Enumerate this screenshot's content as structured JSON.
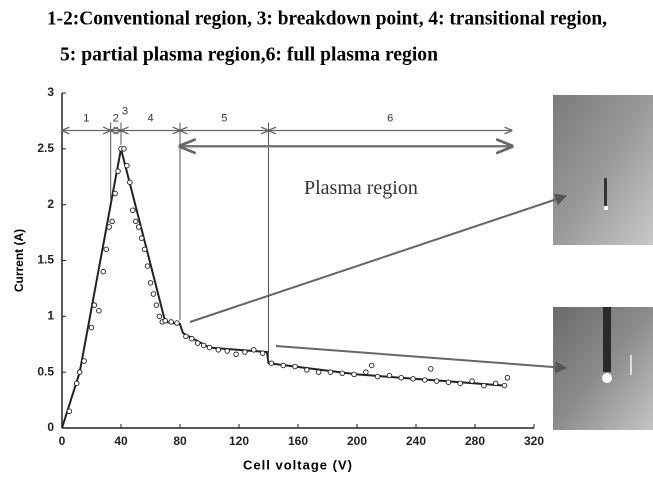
{
  "chart_data": {
    "type": "scatter",
    "title": [
      "1-2:Conventional region, 3: breakdown point, 4: transitional region,",
      "5: partial plasma region,6: full plasma region"
    ],
    "xlabel": "Cell voltage (V)",
    "ylabel": "Current (A)",
    "xlim": [
      0,
      320
    ],
    "ylim": [
      0,
      3
    ],
    "xticks": [
      0,
      40,
      80,
      120,
      160,
      200,
      240,
      280,
      320
    ],
    "yticks": [
      0,
      0.5,
      1,
      1.5,
      2,
      2.5,
      3
    ],
    "color": "#222222",
    "line": {
      "x": [
        0,
        12,
        40,
        70,
        80,
        82,
        100,
        139,
        140,
        200,
        300
      ],
      "values": [
        0,
        0.5,
        2.5,
        0.95,
        0.93,
        0.85,
        0.72,
        0.68,
        0.58,
        0.48,
        0.38
      ]
    },
    "points": {
      "x": [
        5,
        10,
        12,
        15,
        20,
        22,
        25,
        28,
        30,
        32,
        34,
        36,
        38,
        40,
        42,
        44,
        46,
        48,
        50,
        52,
        54,
        56,
        58,
        60,
        62,
        64,
        66,
        68,
        70,
        74,
        78,
        84,
        88,
        92,
        96,
        100,
        106,
        112,
        118,
        124,
        130,
        136,
        142,
        150,
        158,
        166,
        174,
        182,
        190,
        198,
        206,
        210,
        214,
        222,
        230,
        238,
        246,
        250,
        254,
        262,
        270,
        278,
        286,
        294,
        300,
        302
      ],
      "values": [
        0.15,
        0.4,
        0.5,
        0.6,
        0.9,
        1.1,
        1.05,
        1.4,
        1.6,
        1.8,
        1.85,
        2.1,
        2.3,
        2.5,
        2.5,
        2.35,
        2.2,
        1.95,
        1.85,
        1.8,
        1.7,
        1.6,
        1.45,
        1.3,
        1.2,
        1.1,
        1.0,
        0.95,
        0.96,
        0.95,
        0.94,
        0.82,
        0.8,
        0.76,
        0.74,
        0.72,
        0.7,
        0.69,
        0.66,
        0.68,
        0.7,
        0.67,
        0.58,
        0.56,
        0.55,
        0.52,
        0.5,
        0.5,
        0.49,
        0.48,
        0.5,
        0.56,
        0.46,
        0.47,
        0.45,
        0.44,
        0.43,
        0.53,
        0.42,
        0.41,
        0.4,
        0.42,
        0.38,
        0.4,
        0.38,
        0.45
      ]
    },
    "regions": [
      {
        "label": "1",
        "x": [
          0,
          33
        ]
      },
      {
        "label": "2",
        "x": [
          33,
          40
        ]
      },
      {
        "label": "3",
        "x": [
          40,
          40
        ]
      },
      {
        "label": "4",
        "x": [
          40,
          80
        ]
      },
      {
        "label": "5",
        "x": [
          80,
          140
        ]
      },
      {
        "label": "6",
        "x": [
          140,
          305
        ]
      }
    ],
    "plasma_region": {
      "label": "Plasma region",
      "x": [
        80,
        305
      ]
    }
  }
}
